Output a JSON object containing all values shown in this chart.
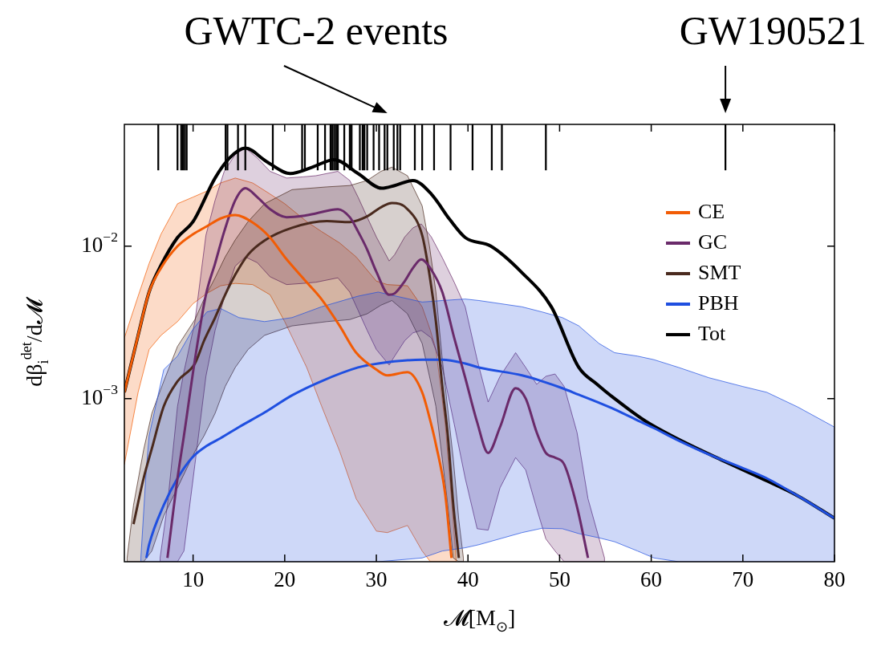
{
  "chart_data": {
    "type": "line",
    "xlabel": "𝓜[M$_{⊙}$]",
    "ylabel": "dβ$_{i}$$^{det}$/d𝓜",
    "log": "y",
    "xlim": [
      2.5,
      80
    ],
    "xticks": [
      10,
      20,
      30,
      40,
      50,
      60,
      70,
      80
    ],
    "ylim": [
      8.5e-05,
      0.063
    ],
    "yticks": [
      {
        "value": 0.01,
        "label": "10$^{−2}$"
      },
      {
        "value": 0.001,
        "label": "10$^{−3}$"
      }
    ],
    "grid": false,
    "legend": "top right",
    "annotations": [
      "GWTC-2 events",
      "GW190521"
    ],
    "series": [
      {
        "type": "bar",
        "color": "#000000",
        "x": [
          6.2,
          8.3,
          8.7,
          8.9,
          9.1,
          9.3,
          13.55,
          13.75,
          14.9,
          15.7,
          18.7,
          21.9,
          22.2,
          23.6,
          24.4,
          25.0,
          25.2,
          25.4,
          25.6,
          25.8,
          26.5,
          27.1,
          27.3,
          28.2,
          28.5,
          28.7,
          29.0,
          29.7,
          30.3,
          30.9,
          31.2,
          31.9,
          32.3,
          32.6,
          34.2,
          35.0,
          36.3,
          38.1,
          40.5,
          42.6,
          43.7,
          48.5,
          68.1
        ],
        "base": [
          0.0316,
          0.0316,
          0.0316,
          0.0316,
          0.0316,
          0.0316,
          0.0316,
          0.0316,
          0.0316,
          0.0316,
          0.0316,
          0.0316,
          0.0316,
          0.0316,
          0.0316,
          0.0316,
          0.0316,
          0.0316,
          0.0316,
          0.0316,
          0.0316,
          0.0316,
          0.0316,
          0.0316,
          0.0316,
          0.0316,
          0.0316,
          0.0316,
          0.0316,
          0.0316,
          0.0316,
          0.0316,
          0.0316,
          0.0316,
          0.0316,
          0.0316,
          0.0316,
          0.0316,
          0.0316,
          0.0316,
          0.0316,
          0.0316,
          0.0316
        ],
        "values": [
          0.0314,
          0.0314,
          0.0314,
          0.0314,
          0.0314,
          0.0314,
          0.0314,
          0.0314,
          0.0314,
          0.0314,
          0.0314,
          0.0314,
          0.0314,
          0.0314,
          0.0314,
          0.0314,
          0.0314,
          0.0314,
          0.0314,
          0.0314,
          0.0314,
          0.0314,
          0.0314,
          0.0314,
          0.0314,
          0.0314,
          0.0314,
          0.0314,
          0.0314,
          0.0314,
          0.0314,
          0.0314,
          0.0314,
          0.0314,
          0.0314,
          0.0314,
          0.0314,
          0.0314,
          0.0314,
          0.0314,
          0.0314,
          0.0314,
          0.0314
        ]
      },
      {
        "name": "CE",
        "color": "#f25c05",
        "x": [
          2.5,
          4,
          5.2,
          6.5,
          8.3,
          10,
          11.5,
          13,
          14.6,
          16.5,
          18.4,
          20,
          22.4,
          24,
          26,
          27.8,
          30,
          31.2,
          33.4,
          35,
          35.9,
          36.5,
          37.5,
          38.2,
          38.7
        ],
        "values": [
          0.0011,
          0.0026,
          0.005,
          0.0072,
          0.01,
          0.012,
          0.0135,
          0.0152,
          0.016,
          0.0143,
          0.0114,
          0.0085,
          0.0058,
          0.0045,
          0.003,
          0.002,
          0.00155,
          0.00142,
          0.00149,
          0.0011,
          0.00071,
          0.0005,
          0.00024,
          9e-05,
          null
        ],
        "upper": [
          0.0025,
          0.0047,
          0.0077,
          0.012,
          0.019,
          0.021,
          0.023,
          0.026,
          0.028,
          0.026,
          0.022,
          0.019,
          0.0145,
          0.0125,
          0.0105,
          0.0085,
          0.0059,
          0.0056,
          0.0055,
          0.004,
          0.0028,
          0.0021,
          0.0007,
          0.00022,
          9e-05
        ],
        "lower": [
          0.00037,
          0.0011,
          0.0021,
          0.0026,
          0.0032,
          0.0042,
          0.0049,
          0.0055,
          0.0057,
          0.0056,
          0.0048,
          0.0032,
          0.0016,
          0.0009,
          0.00045,
          0.00022,
          0.000135,
          0.000132,
          0.000147,
          0.0001,
          8.5e-05,
          8.5e-05,
          8.5e-05,
          8.5e-05,
          8.5e-05
        ]
      },
      {
        "name": "GC",
        "color": "#6a2a6a",
        "x": [
          6.4,
          7.2,
          8.3,
          9,
          10.2,
          11.4,
          12.4,
          13.4,
          14.6,
          15.7,
          17,
          18.4,
          20.2,
          22,
          23.4,
          25.8,
          27.1,
          28,
          29,
          30,
          31.4,
          32,
          33.1,
          34,
          34.9,
          36,
          37.2,
          38.5,
          39.7,
          41,
          42.2,
          43.5,
          45.2,
          46.3,
          47.5,
          48.5,
          49.5,
          50.5,
          51.9,
          53.1,
          54.9
        ],
        "values": [
          null,
          9e-05,
          0.0003,
          0.00057,
          0.0018,
          0.0048,
          0.0077,
          0.0125,
          0.02,
          0.024,
          0.021,
          0.0175,
          0.0155,
          0.0158,
          0.0164,
          0.0175,
          0.0155,
          0.0125,
          0.0095,
          0.0068,
          0.0048,
          0.0049,
          0.0059,
          0.0072,
          0.0082,
          0.007,
          0.005,
          0.0025,
          0.00137,
          0.0007,
          0.00044,
          0.00065,
          0.00117,
          0.001,
          0.0006,
          0.00044,
          0.00041,
          0.00037,
          0.000195,
          9e-05,
          null
        ],
        "upper": [
          9e-05,
          0.0002,
          0.00089,
          0.0015,
          0.0032,
          0.0118,
          0.02,
          0.031,
          0.04,
          0.044,
          0.038,
          0.031,
          0.028,
          0.0285,
          0.029,
          0.031,
          0.027,
          0.021,
          0.0155,
          0.0115,
          0.008,
          0.0088,
          0.0115,
          0.0132,
          0.014,
          0.0115,
          0.0084,
          0.0058,
          0.004,
          0.0018,
          0.00095,
          0.0014,
          0.002,
          0.0016,
          0.00124,
          0.0014,
          0.00145,
          0.0012,
          0.0006,
          0.00022,
          9e-05
        ],
        "lower": [
          8.5e-05,
          8.5e-05,
          8.5e-05,
          0.0001,
          0.00037,
          0.0014,
          0.0028,
          0.0046,
          0.0074,
          0.0085,
          0.0078,
          0.0063,
          0.0056,
          0.0057,
          0.0058,
          0.0062,
          0.005,
          0.0038,
          0.0028,
          0.0021,
          0.00166,
          0.0019,
          0.0024,
          0.0027,
          0.0028,
          0.0025,
          0.0016,
          0.00068,
          0.0003,
          0.00014,
          0.000137,
          0.00026,
          0.00041,
          0.00034,
          0.00019,
          0.00012,
          0.0001,
          8.5e-05,
          8.5e-05,
          8.5e-05,
          8.5e-05
        ]
      },
      {
        "name": "SMT",
        "color": "#4a2a1e",
        "x": [
          2.8,
          3.5,
          4.6,
          5.5,
          6.8,
          8.3,
          10.2,
          11.2,
          12.4,
          13.5,
          14.6,
          16,
          17.8,
          20.8,
          24.6,
          27.1,
          29,
          30.5,
          31.7,
          33.4,
          35,
          35.8,
          36.5,
          37.2,
          37.8,
          38.4,
          39,
          39.5
        ],
        "values": [
          null,
          0.00015,
          0.0003,
          0.00047,
          0.00089,
          0.0013,
          0.0017,
          0.0024,
          0.0034,
          0.0048,
          0.0065,
          0.0088,
          0.0109,
          0.0132,
          0.0146,
          0.0144,
          0.0157,
          0.018,
          0.0192,
          0.0175,
          0.0118,
          0.0065,
          0.0032,
          0.0012,
          0.00057,
          0.0002,
          9e-05,
          null
        ],
        "upper": [
          9e-05,
          0.0002,
          0.00046,
          0.0008,
          0.0013,
          0.0022,
          0.0033,
          0.0045,
          0.0062,
          0.0085,
          0.011,
          0.0145,
          0.019,
          0.0235,
          0.0245,
          0.025,
          0.027,
          0.031,
          0.033,
          0.029,
          0.0184,
          0.01,
          0.005,
          0.0018,
          0.00085,
          0.0004,
          0.00016,
          9e-05
        ],
        "lower": [
          8.5e-05,
          8.5e-05,
          8.5e-05,
          0.0001,
          0.00017,
          0.00026,
          0.00045,
          0.00057,
          0.0008,
          0.0012,
          0.0016,
          0.0021,
          0.0026,
          0.003,
          0.0032,
          0.0033,
          0.0036,
          0.0041,
          0.0044,
          0.0036,
          0.0023,
          0.0014,
          0.00089,
          0.0004,
          0.0002,
          9e-05,
          8.5e-05,
          8.5e-05
        ]
      },
      {
        "name": "PBH",
        "color": "#1f4fe0",
        "x": [
          4.3,
          4.9,
          5.2,
          6.8,
          8.3,
          9.9,
          11.5,
          13,
          15,
          17.8,
          20.8,
          24,
          28,
          30.2,
          35,
          37.2,
          39.7,
          41.2,
          45.9,
          48.1,
          50.3,
          52.1,
          54.3,
          56,
          58.5,
          60.3,
          63,
          66.3,
          70,
          72.6,
          76,
          80
        ],
        "values": [
          null,
          9e-05,
          0.00011,
          0.0002,
          0.0003,
          0.00041,
          0.00049,
          0.00055,
          0.00065,
          0.00081,
          0.00105,
          0.0013,
          0.0016,
          0.0017,
          0.0018,
          0.0018,
          0.0017,
          0.0016,
          0.00142,
          0.0013,
          0.00117,
          0.00106,
          0.00094,
          0.00085,
          0.00072,
          0.00064,
          0.00053,
          0.00043,
          0.00035,
          0.0003,
          0.00023,
          0.000164
        ],
        "upper": [
          9e-05,
          0.00035,
          0.00057,
          0.00155,
          0.0019,
          0.0028,
          0.0037,
          0.0039,
          0.0034,
          0.0032,
          0.0034,
          0.004,
          0.0047,
          0.005,
          0.0043,
          0.0044,
          0.0045,
          0.0044,
          0.004,
          0.0037,
          0.0034,
          0.003,
          0.0023,
          0.002,
          0.0019,
          0.0018,
          0.0016,
          0.00137,
          0.0012,
          0.0011,
          0.00088,
          0.00065
        ],
        "lower": [
          8.5e-05,
          8.5e-05,
          8.5e-05,
          8.5e-05,
          8.5e-05,
          8.5e-05,
          8.5e-05,
          8.5e-05,
          8.5e-05,
          8.5e-05,
          8.5e-05,
          8.5e-05,
          8.5e-05,
          8.5e-05,
          9e-05,
          0.0001,
          0.000105,
          0.00011,
          0.000132,
          0.000141,
          0.00014,
          0.00013,
          0.000122,
          0.000115,
          0.0001,
          9e-05,
          8.5e-05,
          8.5e-05,
          8.5e-05,
          8.5e-05,
          8.5e-05,
          8.5e-05
        ]
      },
      {
        "name": "Tot",
        "color": "#000000",
        "x": [
          2.5,
          4,
          5.2,
          6.5,
          8.3,
          10,
          12.4,
          14,
          15.7,
          18,
          20.6,
          23,
          25.4,
          28,
          30.6,
          32,
          34,
          36,
          38,
          39.7,
          42.5,
          45.9,
          49.1,
          52.1,
          54.1,
          56,
          59.4,
          63,
          67.9,
          72,
          76,
          80
        ],
        "values": [
          0.0011,
          0.0026,
          0.005,
          0.0075,
          0.0114,
          0.0145,
          0.028,
          0.038,
          0.044,
          0.036,
          0.03,
          0.033,
          0.037,
          0.03,
          0.024,
          0.025,
          0.027,
          0.022,
          0.015,
          0.0114,
          0.01,
          0.0067,
          0.004,
          0.0016,
          0.00124,
          0.001,
          0.00071,
          0.00054,
          0.00039,
          0.0003,
          0.00023,
          0.000164
        ]
      }
    ]
  }
}
